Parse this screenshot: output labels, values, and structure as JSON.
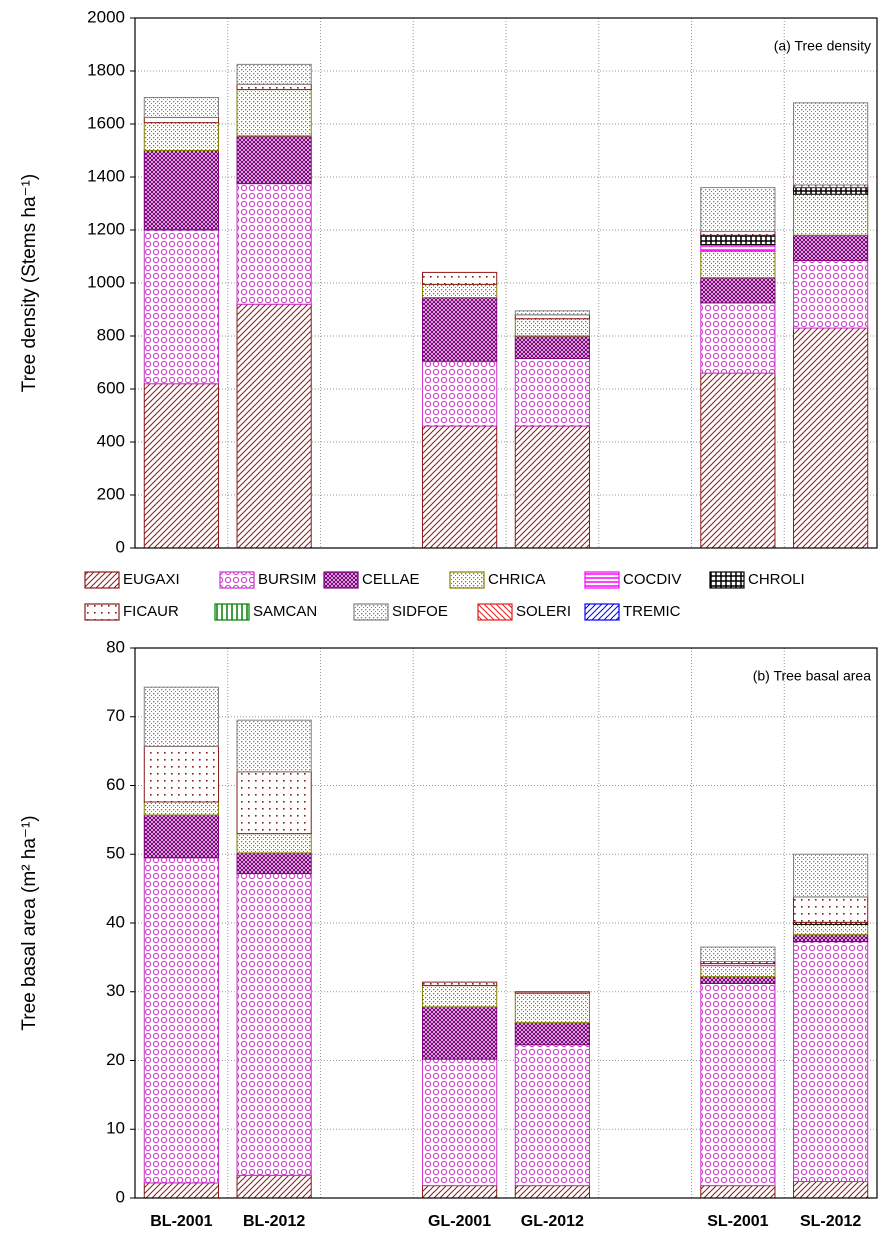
{
  "chart_data": [
    {
      "type": "stacked-bar",
      "title": "(a) Tree density",
      "ylabel": "Tree density (Stems ha⁻¹)",
      "ylim": [
        0,
        2000
      ],
      "yticks": [
        0,
        200,
        400,
        600,
        800,
        1000,
        1200,
        1400,
        1600,
        1800,
        2000
      ],
      "grid": true,
      "series": [
        {
          "name": "EUGAXI",
          "color": "#8b1a1a",
          "pattern": "diagonal",
          "values": [
            620,
            920,
            null,
            460,
            460,
            null,
            660,
            830
          ]
        },
        {
          "name": "BURSIM",
          "color": "#cc33cc",
          "pattern": "circles",
          "values": [
            580,
            455,
            null,
            245,
            255,
            null,
            265,
            255
          ]
        },
        {
          "name": "CELLAE",
          "color": "#800080",
          "pattern": "crosshatch",
          "values": [
            300,
            180,
            null,
            240,
            85,
            null,
            95,
            95
          ]
        },
        {
          "name": "CHRICA",
          "color": "#808000",
          "pattern": "dots",
          "values": [
            105,
            175,
            null,
            50,
            65,
            null,
            100,
            155
          ]
        },
        {
          "name": "COCDIV",
          "color": "#ff00ff",
          "pattern": "horizontal",
          "values": [
            0,
            0,
            null,
            0,
            0,
            null,
            25,
            0
          ]
        },
        {
          "name": "CHROLI",
          "color": "#000000",
          "pattern": "grid",
          "values": [
            0,
            0,
            null,
            0,
            0,
            null,
            35,
            25
          ]
        },
        {
          "name": "FICAUR",
          "color": "#8b1a1a",
          "pattern": "sparse-dots",
          "values": [
            20,
            20,
            null,
            45,
            15,
            null,
            15,
            10
          ]
        },
        {
          "name": "SAMCAN",
          "color": "#008000",
          "pattern": "vertical",
          "values": [
            0,
            0,
            null,
            0,
            0,
            null,
            0,
            0
          ]
        },
        {
          "name": "SIDFOE",
          "color": "#808080",
          "pattern": "dots",
          "values": [
            75,
            75,
            null,
            0,
            15,
            null,
            165,
            310
          ]
        },
        {
          "name": "SOLERI",
          "color": "#e02020",
          "pattern": "backdiagonal",
          "values": [
            0,
            0,
            null,
            0,
            0,
            null,
            0,
            0
          ]
        },
        {
          "name": "TREMIC",
          "color": "#0000ff",
          "pattern": "diagonal",
          "values": [
            0,
            0,
            null,
            0,
            0,
            null,
            0,
            0
          ]
        }
      ]
    },
    {
      "type": "stacked-bar",
      "title": "(b) Tree basal area",
      "ylabel": "Tree basal area (m² ha⁻¹)",
      "categories": [
        "BL-2001",
        "BL-2012",
        null,
        "GL-2001",
        "GL-2012",
        null,
        "SL-2001",
        "SL-2012"
      ],
      "ylim": [
        0,
        80
      ],
      "yticks": [
        0,
        10,
        20,
        30,
        40,
        50,
        60,
        70,
        80
      ],
      "grid": true,
      "series": [
        {
          "values": [
            2.2,
            3.3,
            null,
            1.8,
            1.8,
            null,
            1.8,
            2.4
          ]
        },
        {
          "values": [
            47.3,
            43.9,
            null,
            18.4,
            20.5,
            null,
            29.4,
            34.9
          ]
        },
        {
          "values": [
            6.2,
            3.0,
            null,
            7.6,
            3.2,
            null,
            1.0,
            1.0
          ]
        },
        {
          "values": [
            1.9,
            2.8,
            null,
            3.1,
            4.3,
            null,
            1.6,
            1.5
          ]
        },
        {
          "values": [
            0,
            0,
            null,
            0,
            0,
            null,
            0.3,
            0
          ]
        },
        {
          "values": [
            0,
            0,
            null,
            0,
            0,
            null,
            0,
            0.3
          ]
        },
        {
          "values": [
            8.1,
            9.0,
            null,
            0.5,
            0.2,
            null,
            0.3,
            3.7
          ]
        },
        {
          "values": [
            0,
            0,
            null,
            0,
            0,
            null,
            0,
            0
          ]
        },
        {
          "values": [
            8.6,
            7.5,
            null,
            0,
            0,
            null,
            2.1,
            6.2
          ]
        },
        {
          "values": [
            0,
            0,
            null,
            0,
            0,
            null,
            0,
            0
          ]
        },
        {
          "values": [
            0,
            0,
            null,
            0,
            0,
            null,
            0,
            0
          ]
        }
      ]
    }
  ]
}
